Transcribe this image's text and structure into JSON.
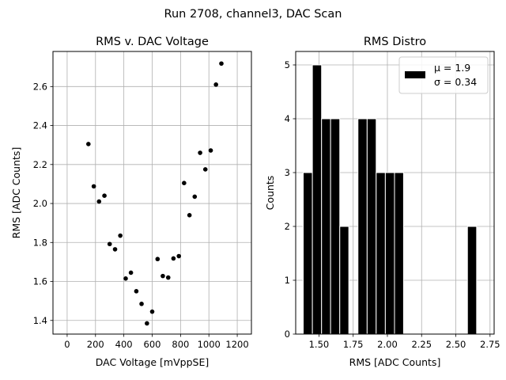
{
  "figure": {
    "suptitle": "Run 2708, channel3, DAC Scan"
  },
  "chart_data": [
    {
      "type": "scatter",
      "title": "RMS v. DAC Voltage",
      "xlabel": "DAC Voltage [mVppSE]",
      "ylabel": "RMS [ADC Counts]",
      "xlim": [
        -100,
        1300
      ],
      "ylim": [
        1.33,
        2.78
      ],
      "xticks": [
        0,
        200,
        400,
        600,
        800,
        1000,
        1200
      ],
      "xtick_labels": [
        "0",
        "200",
        "400",
        "600",
        "800",
        "1000",
        "1200"
      ],
      "yticks": [
        1.4,
        1.6,
        1.8,
        2.0,
        2.2,
        2.4,
        2.6
      ],
      "ytick_labels": [
        "1.4",
        "1.6",
        "1.8",
        "2.0",
        "2.2",
        "2.4",
        "2.6"
      ],
      "grid": true,
      "marker_color": "#000000",
      "points": [
        {
          "x": 150,
          "y": 2.305
        },
        {
          "x": 188,
          "y": 2.088
        },
        {
          "x": 225,
          "y": 2.01
        },
        {
          "x": 263,
          "y": 2.04
        },
        {
          "x": 300,
          "y": 1.792
        },
        {
          "x": 338,
          "y": 1.765
        },
        {
          "x": 375,
          "y": 1.835
        },
        {
          "x": 413,
          "y": 1.615
        },
        {
          "x": 450,
          "y": 1.645
        },
        {
          "x": 488,
          "y": 1.55
        },
        {
          "x": 525,
          "y": 1.485
        },
        {
          "x": 563,
          "y": 1.385
        },
        {
          "x": 600,
          "y": 1.445
        },
        {
          "x": 638,
          "y": 1.715
        },
        {
          "x": 675,
          "y": 1.628
        },
        {
          "x": 713,
          "y": 1.62
        },
        {
          "x": 750,
          "y": 1.718
        },
        {
          "x": 788,
          "y": 1.73
        },
        {
          "x": 825,
          "y": 2.105
        },
        {
          "x": 863,
          "y": 1.94
        },
        {
          "x": 900,
          "y": 2.035
        },
        {
          "x": 938,
          "y": 2.26
        },
        {
          "x": 975,
          "y": 2.175
        },
        {
          "x": 1013,
          "y": 2.272
        },
        {
          "x": 1050,
          "y": 2.61
        },
        {
          "x": 1088,
          "y": 2.718
        }
      ]
    },
    {
      "type": "bar",
      "subtype": "histogram",
      "title": "RMS Distro",
      "xlabel": "RMS [ADC Counts]",
      "ylabel": "Counts",
      "xlim": [
        1.33,
        2.78
      ],
      "ylim": [
        0,
        5.25
      ],
      "xticks": [
        1.5,
        1.75,
        2.0,
        2.25,
        2.5,
        2.75
      ],
      "xtick_labels": [
        "1.50",
        "1.75",
        "2.00",
        "2.25",
        "2.50",
        "2.75"
      ],
      "yticks": [
        0,
        1,
        2,
        3,
        4,
        5
      ],
      "ytick_labels": [
        "0",
        "1",
        "2",
        "3",
        "4",
        "5"
      ],
      "grid": true,
      "bar_color": "#000000",
      "edge_color": "#ffffff",
      "bins": [
        {
          "x0": 1.385,
          "x1": 1.452,
          "count": 3
        },
        {
          "x0": 1.452,
          "x1": 1.519,
          "count": 5
        },
        {
          "x0": 1.519,
          "x1": 1.585,
          "count": 4
        },
        {
          "x0": 1.585,
          "x1": 1.652,
          "count": 4
        },
        {
          "x0": 1.652,
          "x1": 1.718,
          "count": 2
        },
        {
          "x0": 1.718,
          "x1": 1.785,
          "count": 0
        },
        {
          "x0": 1.785,
          "x1": 1.852,
          "count": 4
        },
        {
          "x0": 1.852,
          "x1": 1.918,
          "count": 4
        },
        {
          "x0": 1.918,
          "x1": 1.985,
          "count": 3
        },
        {
          "x0": 1.985,
          "x1": 2.052,
          "count": 3
        },
        {
          "x0": 2.052,
          "x1": 2.118,
          "count": 3
        },
        {
          "x0": 2.118,
          "x1": 2.185,
          "count": 0
        },
        {
          "x0": 2.185,
          "x1": 2.252,
          "count": 0
        },
        {
          "x0": 2.252,
          "x1": 2.318,
          "count": 0
        },
        {
          "x0": 2.318,
          "x1": 2.385,
          "count": 0
        },
        {
          "x0": 2.385,
          "x1": 2.452,
          "count": 0
        },
        {
          "x0": 2.452,
          "x1": 2.518,
          "count": 0
        },
        {
          "x0": 2.518,
          "x1": 2.585,
          "count": 0
        },
        {
          "x0": 2.585,
          "x1": 2.652,
          "count": 2
        }
      ],
      "legend": {
        "placement": "top-right",
        "mu_label": "μ = 1.9",
        "sigma_label": "σ = 0.34"
      }
    }
  ]
}
